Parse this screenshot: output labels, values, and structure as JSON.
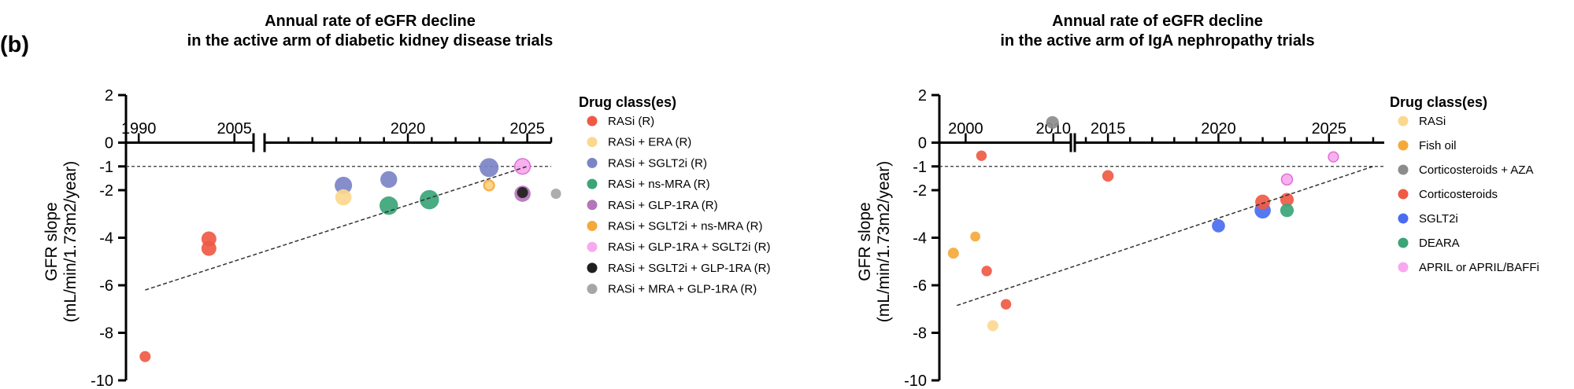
{
  "figure": {
    "panel_label": "(b)"
  },
  "chart_data": [
    {
      "type": "scatter",
      "title_lines": [
        "Annual rate of eGFR decline",
        "in the active arm of diabetic kidney disease trials"
      ],
      "xlabel": "",
      "ylabel_lines": [
        "GFR slope",
        "(mL/min/1.73m2/year)"
      ],
      "ylim": [
        -10,
        2
      ],
      "yticks": [
        2,
        0,
        -1,
        -2,
        -4,
        -6,
        -8,
        -10
      ],
      "ytick_labels": [
        "2",
        "0",
        "-1",
        "-2",
        "-4",
        "-6",
        "-8",
        "-10"
      ],
      "reference_line_y": -1,
      "x_axis": {
        "broken": true,
        "segment1": {
          "range": [
            1988,
            2008
          ],
          "ticks": [
            1990,
            2005
          ]
        },
        "segment2": {
          "range": [
            2014,
            2026
          ],
          "ticks": [
            2020,
            2025
          ]
        },
        "tick_labels": [
          "1990",
          "2005",
          "2020",
          "2025"
        ]
      },
      "trendline": {
        "from": [
          1991,
          -6.2
        ],
        "to": [
          2025,
          -1.0
        ]
      },
      "legend_title": "Drug class(es)",
      "legend": [
        {
          "label": "RASi (R)",
          "color": "#ef5a45"
        },
        {
          "label": "RASi + ERA (R)",
          "color": "#fbd88e"
        },
        {
          "label": "RASi + SGLT2i (R)",
          "color": "#7b84c5"
        },
        {
          "label": "RASi + ns-MRA (R)",
          "color": "#3aa577"
        },
        {
          "label": "RASi + GLP-1RA (R)",
          "color": "#b376b8"
        },
        {
          "label": "RASi + SGLT2i + ns-MRA (R)",
          "color": "#f5a93b"
        },
        {
          "label": "RASi + GLP-1RA + SGLT2i (R)",
          "color": "#f7a9ee"
        },
        {
          "label": "RASi + SGLT2i + GLP-1RA (R)",
          "color": "#1f1f1f"
        },
        {
          "label": "RASi + MRA + GLP-1RA (R)",
          "color": "#a6a6a6"
        }
      ],
      "points": [
        {
          "x": 2001,
          "y": -4.05,
          "size": 2,
          "cls": 0
        },
        {
          "x": 2001,
          "y": -4.45,
          "size": 2,
          "cls": 0
        },
        {
          "x": 1991,
          "y": -9.0,
          "size": 1,
          "cls": 0
        },
        {
          "x": 2017.3,
          "y": -2.3,
          "size": 2.4,
          "cls": 1
        },
        {
          "x": 2017.3,
          "y": -1.8,
          "size": 2.8,
          "cls": 2
        },
        {
          "x": 2019.2,
          "y": -1.55,
          "size": 2.6,
          "cls": 2
        },
        {
          "x": 2023.4,
          "y": -1.05,
          "size": 3.4,
          "cls": 2
        },
        {
          "x": 2019.2,
          "y": -2.65,
          "size": 3.2,
          "cls": 3
        },
        {
          "x": 2020.9,
          "y": -2.4,
          "size": 3.5,
          "cls": 3
        },
        {
          "x": 2023.4,
          "y": -1.8,
          "size": 1.2,
          "cls": 5
        },
        {
          "x": 2023.4,
          "y": -1.8,
          "size": 0.5,
          "cls": 1
        },
        {
          "x": 2024.8,
          "y": -2.15,
          "size": 2.4,
          "cls": 4
        },
        {
          "x": 2024.8,
          "y": -1.0,
          "size": 2.2,
          "cls": 6
        },
        {
          "x": 2024.8,
          "y": -2.1,
          "size": 1,
          "cls": 7
        },
        {
          "x": 2026.2,
          "y": -2.15,
          "size": 0.85,
          "cls": 8
        }
      ]
    },
    {
      "type": "scatter",
      "title_lines": [
        "Annual rate of eGFR decline",
        "in the active arm of IgA nephropathy trials"
      ],
      "xlabel": "",
      "ylabel_lines": [
        "GFR slope",
        "(mL/min/1.73m2/year)"
      ],
      "ylim": [
        -10,
        2
      ],
      "yticks": [
        2,
        0,
        -1,
        -2,
        -4,
        -6,
        -8,
        -10
      ],
      "ytick_labels": [
        "2",
        "0",
        "-1",
        "-2",
        "-4",
        "-6",
        "-8",
        "-10"
      ],
      "reference_line_y": -1,
      "x_axis": {
        "broken": true,
        "segment1": {
          "range": [
            1997,
            2012
          ],
          "ticks": [
            2000,
            2010
          ]
        },
        "segment2": {
          "range": [
            2013.5,
            2027.5
          ],
          "ticks": [
            2015,
            2020,
            2025
          ]
        },
        "tick_labels": [
          "2000",
          "2010",
          "2015",
          "2020",
          "2025"
        ]
      },
      "trendline": {
        "from": [
          1999,
          -6.85
        ],
        "to": [
          2027,
          -1.0
        ]
      },
      "legend_title": "Drug class(es)",
      "legend": [
        {
          "label": "RASi",
          "color": "#fbd88e"
        },
        {
          "label": "Fish oil",
          "color": "#f5a93b"
        },
        {
          "label": "Corticosteroids + AZA",
          "color": "#8c8c8c"
        },
        {
          "label": "Corticosteroids",
          "color": "#ef5a45"
        },
        {
          "label": "SGLT2i",
          "color": "#4a6cf0"
        },
        {
          "label": "DEARA",
          "color": "#3aa577"
        },
        {
          "label": "APRIL or APRIL/BAFFi",
          "color": "#f7a9ee"
        }
      ],
      "points": [
        {
          "x": 1998.6,
          "y": -4.65,
          "size": 1,
          "cls": 1
        },
        {
          "x": 2001.1,
          "y": -3.95,
          "size": 0.8,
          "cls": 1
        },
        {
          "x": 2003.1,
          "y": -7.7,
          "size": 1,
          "cls": 0
        },
        {
          "x": 2001.8,
          "y": -0.55,
          "size": 0.9,
          "cls": 3
        },
        {
          "x": 2002.4,
          "y": -5.4,
          "size": 0.9,
          "cls": 3
        },
        {
          "x": 2004.6,
          "y": -6.8,
          "size": 0.9,
          "cls": 3
        },
        {
          "x": 2009.9,
          "y": 0.85,
          "size": 1.4,
          "cls": 2
        },
        {
          "x": 2015,
          "y": -1.4,
          "size": 1.1,
          "cls": 3
        },
        {
          "x": 2020,
          "y": -3.5,
          "size": 1.5,
          "cls": 4
        },
        {
          "x": 2022,
          "y": -2.5,
          "size": 2,
          "cls": 3
        },
        {
          "x": 2022,
          "y": -2.85,
          "size": 2.4,
          "cls": 4
        },
        {
          "x": 2023.1,
          "y": -2.4,
          "size": 1.6,
          "cls": 3
        },
        {
          "x": 2023.1,
          "y": -2.85,
          "size": 1.6,
          "cls": 5
        },
        {
          "x": 2023.1,
          "y": -1.55,
          "size": 1,
          "cls": 6
        },
        {
          "x": 2025.2,
          "y": -0.6,
          "size": 0.8,
          "cls": 6
        }
      ]
    }
  ]
}
